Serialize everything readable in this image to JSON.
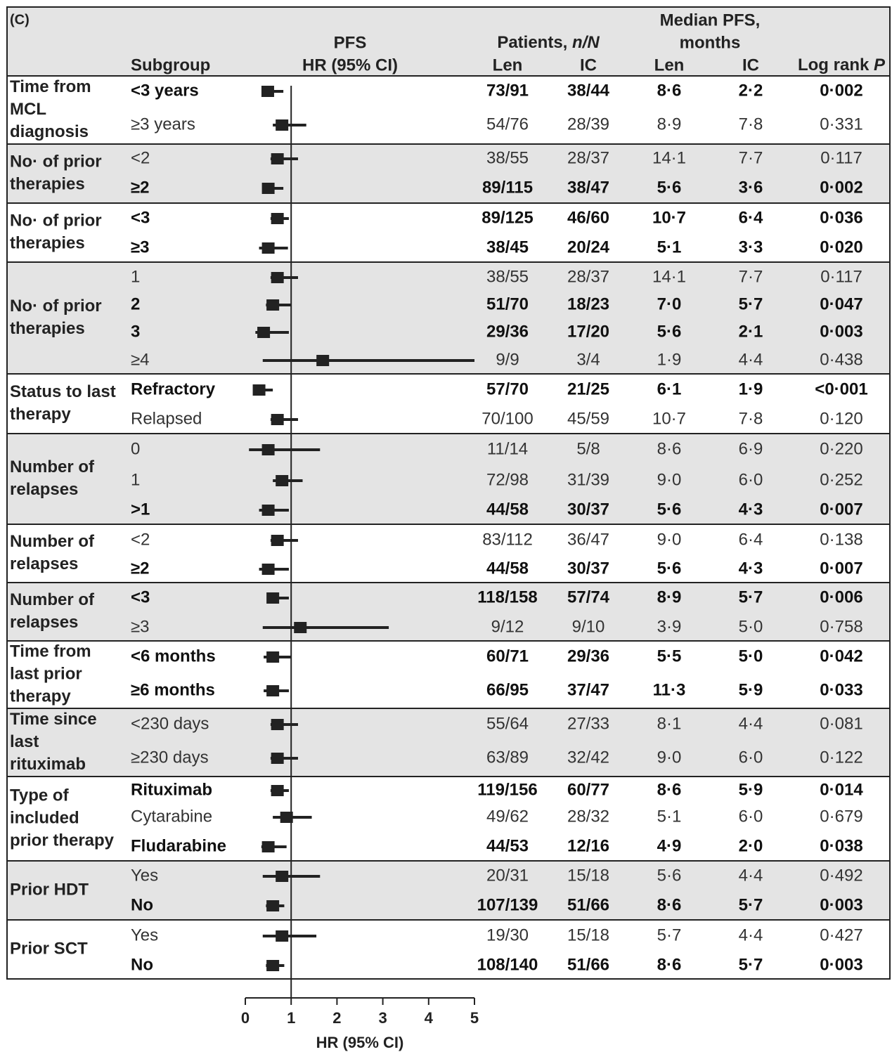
{
  "chart_data": {
    "type": "forest",
    "header": {
      "panel": "(C)",
      "subgroup": "Subgroup",
      "pfs": "PFS",
      "hr": "HR (95% CI)",
      "patients": "Patients,",
      "patients_unit": "n/N",
      "patients_cols": [
        "Len",
        "IC"
      ],
      "median": "Median PFS,",
      "median_unit": "months",
      "median_cols": [
        "Len",
        "IC"
      ],
      "p": "Log rank",
      "p_symbol": "P"
    },
    "xlabel": "HR (95% CI)",
    "xlim": [
      0,
      5
    ],
    "xticks": [
      0,
      1,
      2,
      3,
      4,
      5
    ],
    "reference": 1,
    "color": "#222222",
    "groups": [
      {
        "label": [
          "Time from",
          "MCL",
          "diagnosis"
        ],
        "rows": [
          {
            "subgroup": "<3 years",
            "hr": 0.49,
            "ci": [
              0.4,
              0.83
            ],
            "len": "73/91",
            "ic": "38/44",
            "med_len": "8·6",
            "med_ic": "2·2",
            "p": "0·002",
            "bold": true
          },
          {
            "subgroup": "≥3 years",
            "hr": 0.8,
            "ci": [
              0.6,
              1.33
            ],
            "len": "54/76",
            "ic": "28/39",
            "med_len": "8·9",
            "med_ic": "7·8",
            "p": "0·331",
            "bold": false
          }
        ]
      },
      {
        "label": [
          "No· of prior",
          "therapies"
        ],
        "rows": [
          {
            "subgroup": "<2",
            "hr": 0.7,
            "ci": [
              0.55,
              1.15
            ],
            "len": "38/55",
            "ic": "28/37",
            "med_len": "14·1",
            "med_ic": "7·7",
            "p": "0·117",
            "bold": false
          },
          {
            "subgroup": "≥2",
            "hr": 0.5,
            "ci": [
              0.4,
              0.83
            ],
            "len": "89/115",
            "ic": "38/47",
            "med_len": "5·6",
            "med_ic": "3·6",
            "p": "0·002",
            "bold": true
          }
        ]
      },
      {
        "label": [
          "No· of prior",
          "therapies"
        ],
        "rows": [
          {
            "subgroup": "<3",
            "hr": 0.7,
            "ci": [
              0.55,
              0.95
            ],
            "len": "89/125",
            "ic": "46/60",
            "med_len": "10·7",
            "med_ic": "6·4",
            "p": "0·036",
            "bold": true
          },
          {
            "subgroup": "≥3",
            "hr": 0.5,
            "ci": [
              0.3,
              0.93
            ],
            "len": "38/45",
            "ic": "20/24",
            "med_len": "5·1",
            "med_ic": "3·3",
            "p": "0·020",
            "bold": true
          }
        ]
      },
      {
        "label": [
          "No· of prior",
          "therapies"
        ],
        "rows": [
          {
            "subgroup": "1",
            "hr": 0.7,
            "ci": [
              0.55,
              1.15
            ],
            "len": "38/55",
            "ic": "28/37",
            "med_len": "14·1",
            "med_ic": "7·7",
            "p": "0·117",
            "bold": false
          },
          {
            "subgroup": "2",
            "hr": 0.6,
            "ci": [
              0.45,
              1.0
            ],
            "len": "51/70",
            "ic": "18/23",
            "med_len": "7·0",
            "med_ic": "5·7",
            "p": "0·047",
            "bold": true
          },
          {
            "subgroup": "3",
            "hr": 0.4,
            "ci": [
              0.22,
              0.95
            ],
            "len": "29/36",
            "ic": "17/20",
            "med_len": "5·6",
            "med_ic": "2·1",
            "p": "0·003",
            "bold": true
          },
          {
            "subgroup": "≥4",
            "hr": 1.69,
            "ci": [
              0.38,
              5.0
            ],
            "len": "9/9",
            "ic": "3/4",
            "med_len": "1·9",
            "med_ic": "4·4",
            "p": "0·438",
            "bold": false
          }
        ]
      },
      {
        "label": [
          "Status to last",
          "therapy"
        ],
        "rows": [
          {
            "subgroup": "Refractory",
            "hr": 0.3,
            "ci": [
              0.2,
              0.6
            ],
            "len": "57/70",
            "ic": "21/25",
            "med_len": "6·1",
            "med_ic": "1·9",
            "p": "<0·001",
            "bold": true
          },
          {
            "subgroup": "Relapsed",
            "hr": 0.7,
            "ci": [
              0.55,
              1.15
            ],
            "len": "70/100",
            "ic": "45/59",
            "med_len": "10·7",
            "med_ic": "7·8",
            "p": "0·120",
            "bold": false
          }
        ]
      },
      {
        "label": [
          "Number of",
          "relapses"
        ],
        "rows": [
          {
            "subgroup": "0",
            "hr": 0.5,
            "ci": [
              0.08,
              1.63
            ],
            "len": "11/14",
            "ic": "5/8",
            "med_len": "8·6",
            "med_ic": "6·9",
            "p": "0·220",
            "bold": false
          },
          {
            "subgroup": "1",
            "hr": 0.8,
            "ci": [
              0.6,
              1.25
            ],
            "len": "72/98",
            "ic": "31/39",
            "med_len": "9·0",
            "med_ic": "6·0",
            "p": "0·252",
            "bold": false
          },
          {
            "subgroup": ">1",
            "hr": 0.5,
            "ci": [
              0.3,
              0.95
            ],
            "len": "44/58",
            "ic": "30/37",
            "med_len": "5·6",
            "med_ic": "4·3",
            "p": "0·007",
            "bold": true
          }
        ]
      },
      {
        "label": [
          "Number of",
          "relapses"
        ],
        "rows": [
          {
            "subgroup": "<2",
            "hr": 0.7,
            "ci": [
              0.55,
              1.15
            ],
            "len": "83/112",
            "ic": "36/47",
            "med_len": "9·0",
            "med_ic": "6·4",
            "p": "0·138",
            "bold": false
          },
          {
            "subgroup": "≥2",
            "hr": 0.5,
            "ci": [
              0.3,
              0.95
            ],
            "len": "44/58",
            "ic": "30/37",
            "med_len": "5·6",
            "med_ic": "4·3",
            "p": "0·007",
            "bold": true
          }
        ]
      },
      {
        "label": [
          "Number of",
          "relapses"
        ],
        "rows": [
          {
            "subgroup": "<3",
            "hr": 0.6,
            "ci": [
              0.5,
              0.95
            ],
            "len": "118/158",
            "ic": "57/74",
            "med_len": "8·9",
            "med_ic": "5·7",
            "p": "0·006",
            "bold": true
          },
          {
            "subgroup": "≥3",
            "hr": 1.2,
            "ci": [
              0.38,
              3.13
            ],
            "len": "9/12",
            "ic": "9/10",
            "med_len": "3·9",
            "med_ic": "5·0",
            "p": "0·758",
            "bold": false
          }
        ]
      },
      {
        "label": [
          "Time from",
          "last prior",
          "therapy"
        ],
        "rows": [
          {
            "subgroup": "<6 months",
            "hr": 0.6,
            "ci": [
              0.4,
              1.0
            ],
            "len": "60/71",
            "ic": "29/36",
            "med_len": "5·5",
            "med_ic": "5·0",
            "p": "0·042",
            "bold": true
          },
          {
            "subgroup": "≥6 months",
            "hr": 0.6,
            "ci": [
              0.4,
              0.95
            ],
            "len": "66/95",
            "ic": "37/47",
            "med_len": "11·3",
            "med_ic": "5·9",
            "p": "0·033",
            "bold": true
          }
        ]
      },
      {
        "label": [
          "Time since",
          "last",
          "rituximab"
        ],
        "rows": [
          {
            "subgroup": "<230 days",
            "hr": 0.7,
            "ci": [
              0.55,
              1.15
            ],
            "len": "55/64",
            "ic": "27/33",
            "med_len": "8·1",
            "med_ic": "4·4",
            "p": "0·081",
            "bold": false
          },
          {
            "subgroup": "≥230 days",
            "hr": 0.7,
            "ci": [
              0.55,
              1.15
            ],
            "len": "63/89",
            "ic": "32/42",
            "med_len": "9·0",
            "med_ic": "6·0",
            "p": "0·122",
            "bold": false
          }
        ]
      },
      {
        "label": [
          "Type of",
          "included",
          "prior therapy"
        ],
        "rows": [
          {
            "subgroup": "Rituximab",
            "hr": 0.7,
            "ci": [
              0.55,
              0.95
            ],
            "len": "119/156",
            "ic": "60/77",
            "med_len": "8·6",
            "med_ic": "5·9",
            "p": "0·014",
            "bold": true
          },
          {
            "subgroup": "Cytarabine",
            "hr": 0.9,
            "ci": [
              0.6,
              1.45
            ],
            "len": "49/62",
            "ic": "28/32",
            "med_len": "5·1",
            "med_ic": "6·0",
            "p": "0·679",
            "bold": false
          },
          {
            "subgroup": "Fludarabine",
            "hr": 0.5,
            "ci": [
              0.35,
              0.9
            ],
            "len": "44/53",
            "ic": "12/16",
            "med_len": "4·9",
            "med_ic": "2·0",
            "p": "0·038",
            "bold": true
          }
        ]
      },
      {
        "label": [
          "Prior HDT"
        ],
        "rows": [
          {
            "subgroup": "Yes",
            "hr": 0.8,
            "ci": [
              0.38,
              1.63
            ],
            "len": "20/31",
            "ic": "15/18",
            "med_len": "5·6",
            "med_ic": "4·4",
            "p": "0·492",
            "bold": false
          },
          {
            "subgroup": "No",
            "hr": 0.6,
            "ci": [
              0.45,
              0.85
            ],
            "len": "107/139",
            "ic": "51/66",
            "med_len": "8·6",
            "med_ic": "5·7",
            "p": "0·003",
            "bold": true
          }
        ]
      },
      {
        "label": [
          "Prior SCT"
        ],
        "rows": [
          {
            "subgroup": "Yes",
            "hr": 0.8,
            "ci": [
              0.38,
              1.55
            ],
            "len": "19/30",
            "ic": "15/18",
            "med_len": "5·7",
            "med_ic": "4·4",
            "p": "0·427",
            "bold": false
          },
          {
            "subgroup": "No",
            "hr": 0.6,
            "ci": [
              0.45,
              0.85
            ],
            "len": "108/140",
            "ic": "51/66",
            "med_len": "8·6",
            "med_ic": "5·7",
            "p": "0·003",
            "bold": true
          }
        ]
      }
    ]
  }
}
